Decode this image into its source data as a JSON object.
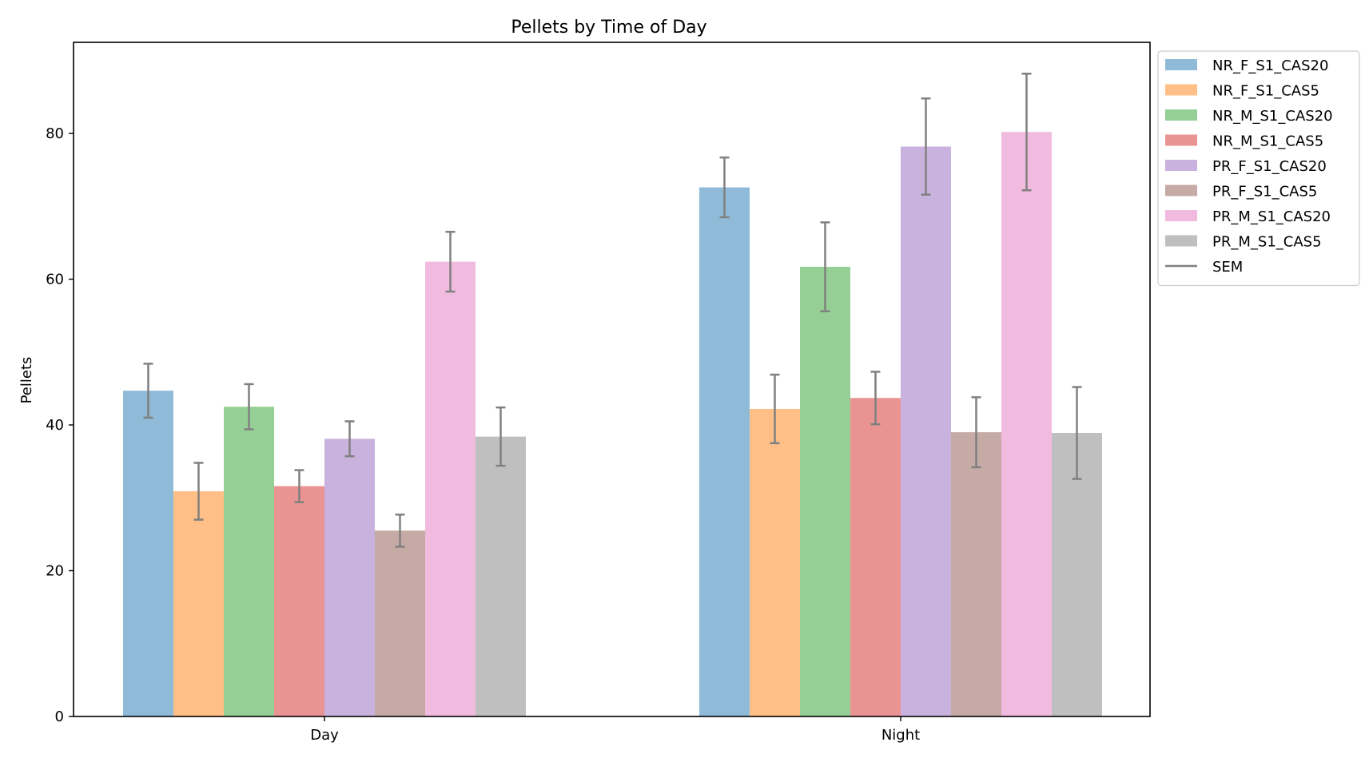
{
  "chart_data": {
    "type": "bar",
    "title": "Pellets by Time of Day",
    "xlabel": "",
    "ylabel": "Pellets",
    "categories": [
      "Day",
      "Night"
    ],
    "ylim": [
      0,
      92.5
    ],
    "yticks": [
      0,
      20,
      40,
      60,
      80
    ],
    "grid": false,
    "legend_position": "outside-top-right",
    "error_label": "SEM",
    "error_color": "#808080",
    "bar_alpha": 0.5,
    "series": [
      {
        "name": "NR_F_S1_CAS20",
        "color": "#1f77b4",
        "values": [
          44.7,
          72.6
        ],
        "errors": [
          3.7,
          4.1
        ]
      },
      {
        "name": "NR_F_S1_CAS5",
        "color": "#ff7f0e",
        "values": [
          30.9,
          42.2
        ],
        "errors": [
          3.9,
          4.7
        ]
      },
      {
        "name": "NR_M_S1_CAS20",
        "color": "#2ca02c",
        "values": [
          42.5,
          61.7
        ],
        "errors": [
          3.1,
          6.1
        ]
      },
      {
        "name": "NR_M_S1_CAS5",
        "color": "#d62728",
        "values": [
          31.6,
          43.7
        ],
        "errors": [
          2.2,
          3.6
        ]
      },
      {
        "name": "PR_F_S1_CAS20",
        "color": "#9467bd",
        "values": [
          38.1,
          78.2
        ],
        "errors": [
          2.4,
          6.6
        ]
      },
      {
        "name": "PR_F_S1_CAS5",
        "color": "#8c564b",
        "values": [
          25.5,
          39.0
        ],
        "errors": [
          2.2,
          4.8
        ]
      },
      {
        "name": "PR_M_S1_CAS20",
        "color": "#e377c2",
        "values": [
          62.4,
          80.2
        ],
        "errors": [
          4.1,
          8.0
        ]
      },
      {
        "name": "PR_M_S1_CAS5",
        "color": "#7f7f7f",
        "values": [
          38.4,
          38.9
        ],
        "errors": [
          4.0,
          6.3
        ]
      }
    ]
  }
}
